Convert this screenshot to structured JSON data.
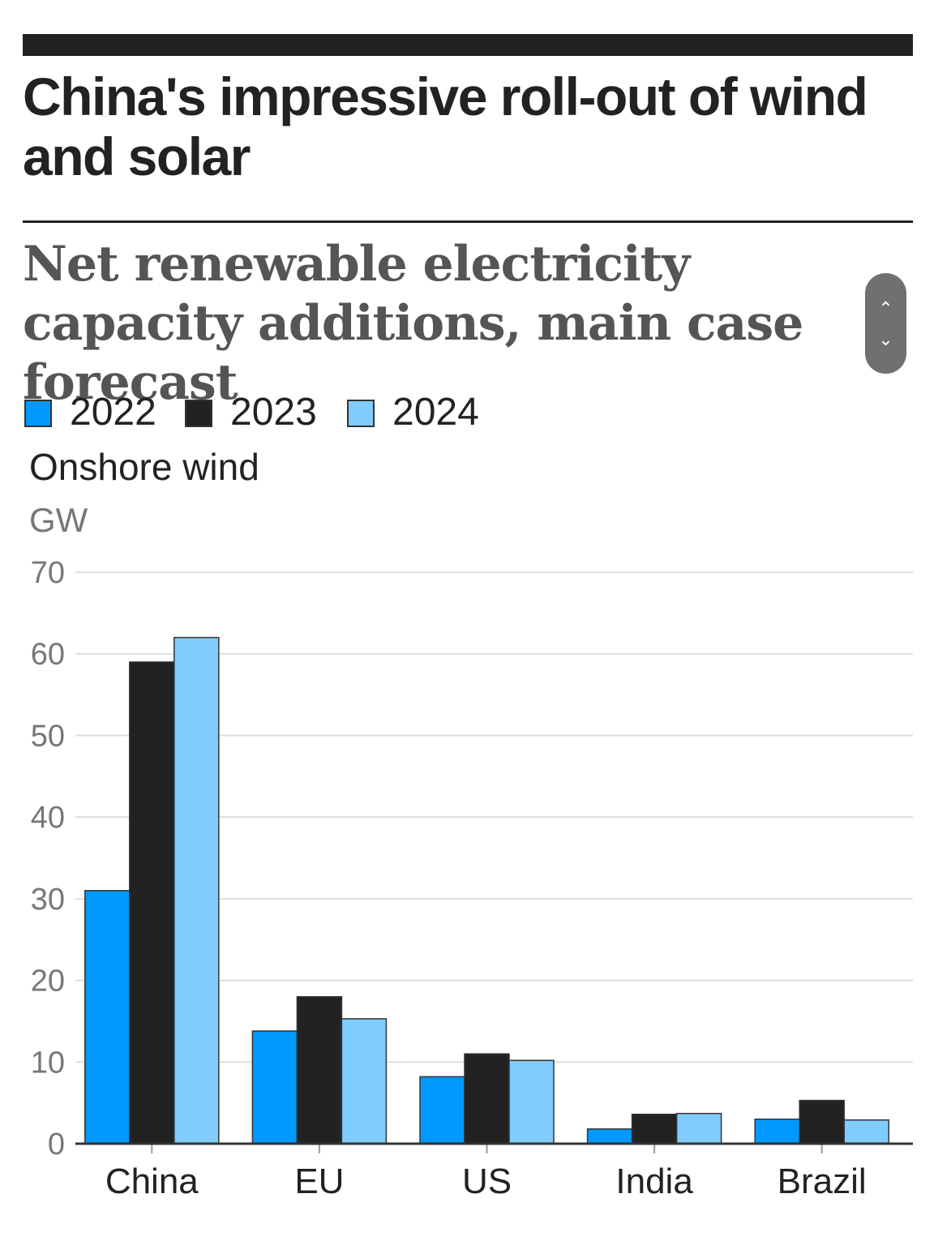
{
  "headline": "China's impressive roll-out of wind and solar",
  "subtitle": "Net renewable electricity capacity additions, main case forecast",
  "scroll_control": {
    "up_icon": "chevron-up-icon",
    "down_icon": "chevron-down-icon"
  },
  "colors": {
    "y2022": "#0099ff",
    "y2023": "#222222",
    "y2024": "#80ccff",
    "grid": "#dddddd",
    "text": "#222222",
    "muted": "#777777"
  },
  "chart_data": {
    "type": "bar",
    "title": "Onshore wind",
    "ylabel": "GW",
    "xlabel": "",
    "ylim": [
      0,
      70
    ],
    "yticks": [
      0,
      10,
      20,
      30,
      40,
      50,
      60,
      70
    ],
    "categories": [
      "China",
      "EU",
      "US",
      "India",
      "Brazil"
    ],
    "series": [
      {
        "name": "2022",
        "color": "#0099ff",
        "values": [
          31,
          13.8,
          8.2,
          1.8,
          3
        ]
      },
      {
        "name": "2023",
        "color": "#222222",
        "values": [
          59,
          18,
          11,
          3.6,
          5.3
        ]
      },
      {
        "name": "2024",
        "color": "#80ccff",
        "values": [
          62,
          15.3,
          10.2,
          3.7,
          2.9
        ]
      }
    ],
    "legend": "top-left",
    "grid": true
  }
}
